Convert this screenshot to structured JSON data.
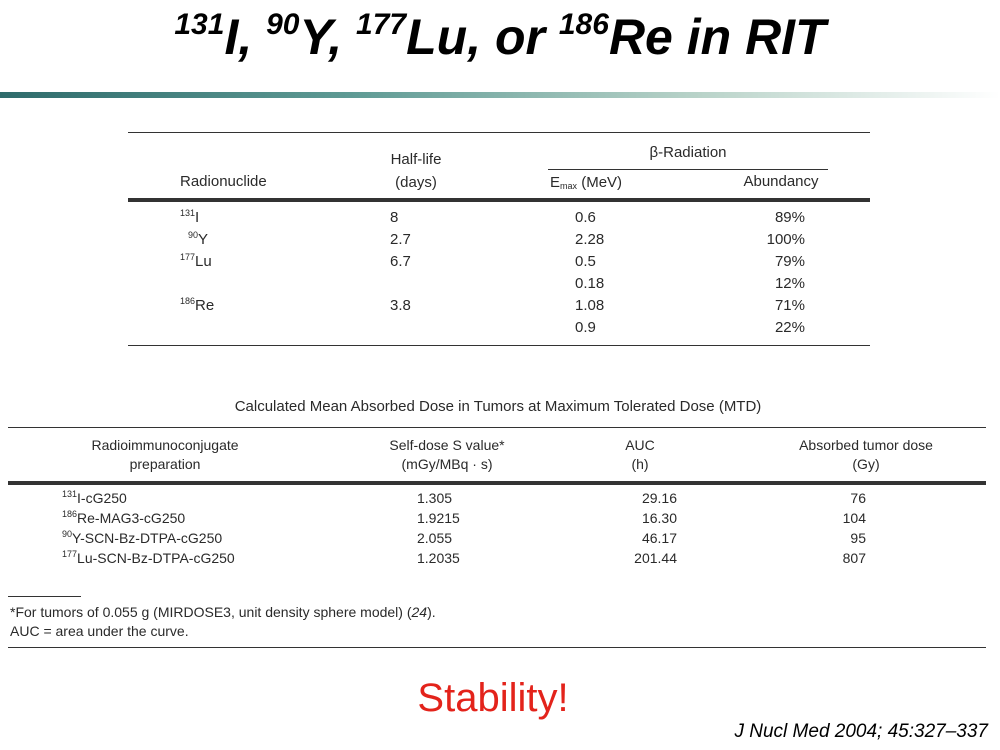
{
  "header": {
    "title": [
      {
        "sup": "131",
        "text": "I, "
      },
      {
        "sup": "90",
        "text": "Y, "
      },
      {
        "sup": "177",
        "text": "Lu, or "
      },
      {
        "sup": "186",
        "text": "Re in RIT"
      }
    ]
  },
  "table1": {
    "headers": {
      "radionuclide": "Radionuclide",
      "half_life": [
        "Half-life",
        "(days)"
      ],
      "group": "β-Radiation",
      "emax": {
        "base": "E",
        "sub": "max",
        "unit": " (MeV)"
      },
      "abundancy": "Abundancy"
    },
    "rows": [
      {
        "sup": "131",
        "symbol": "I",
        "half_life": "8",
        "emax": "0.6",
        "abundancy": "89%"
      },
      {
        "sup": "90",
        "symbol": "Y",
        "half_life": "2.7",
        "emax": "2.28",
        "abundancy": "100%"
      },
      {
        "sup": "177",
        "symbol": "Lu",
        "half_life": "6.7",
        "emax": "0.5",
        "abundancy": "79%"
      },
      {
        "emax": "0.18",
        "abundancy": "12%"
      },
      {
        "sup": "186",
        "symbol": "Re",
        "half_life": "3.8",
        "emax": "1.08",
        "abundancy": "71%"
      },
      {
        "emax": "0.9",
        "abundancy": "22%"
      }
    ]
  },
  "table2": {
    "title": "Calculated Mean Absorbed Dose in Tumors at Maximum Tolerated Dose (MTD)",
    "headers": [
      [
        "Radioimmunoconjugate",
        "preparation"
      ],
      [
        "Self-dose S value*",
        "(mGy/MBq · s)"
      ],
      [
        "AUC",
        "(h)"
      ],
      [
        "Absorbed tumor dose",
        "(Gy)"
      ]
    ],
    "rows": [
      {
        "sup": "131",
        "name": "I-cG250",
        "s_value": "1.305",
        "auc": "29.16",
        "dose": "76"
      },
      {
        "sup": "186",
        "name": "Re-MAG3-cG250",
        "s_value": "1.9215",
        "auc": "16.30",
        "dose": "104"
      },
      {
        "sup": "90",
        "name": "Y-SCN-Bz-DTPA-cG250",
        "s_value": "2.055",
        "auc": "46.17",
        "dose": "95"
      },
      {
        "sup": "177",
        "name": "Lu-SCN-Bz-DTPA-cG250",
        "s_value": "1.2035",
        "auc": "201.44",
        "dose": "807"
      }
    ],
    "footnotes": [
      [
        "*For tumors of 0.055 g (MIRDOSE3, unit density sphere model) (",
        "24",
        ")."
      ],
      [
        "AUC = area under the curve."
      ]
    ]
  },
  "callout": "Stability!",
  "citation": "J Nucl Med 2004; 45:327–337"
}
